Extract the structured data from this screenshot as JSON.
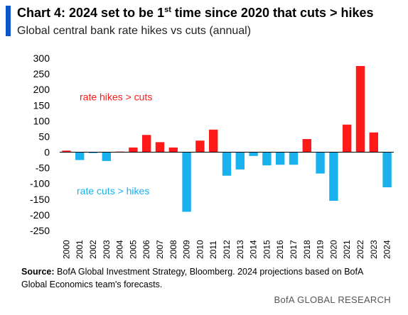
{
  "header": {
    "title_main": "Chart 4: 2024 set to be 1",
    "title_sup": "st",
    "title_rest": " time since 2020 that cuts > hikes",
    "subtitle": "Global central bank rate hikes vs cuts (annual)"
  },
  "footer": {
    "source_label": "Source:",
    "source_text": "BofA Global Investment Strategy, Bloomberg. 2024 projections based on BofA Global Economics team's forecasts.",
    "brand": "BofA GLOBAL RESEARCH"
  },
  "colors": {
    "positive": "#ff1a1a",
    "negative": "#19b2ee",
    "accent": "#0a56c9"
  },
  "chart_data": {
    "type": "bar",
    "categories": [
      "2000",
      "2001",
      "2002",
      "2003",
      "2004",
      "2005",
      "2006",
      "2007",
      "2008",
      "2009",
      "2010",
      "2011",
      "2012",
      "2013",
      "2014",
      "2015",
      "2016",
      "2017",
      "2018",
      "2019",
      "2020",
      "2021",
      "2022",
      "2023",
      "2024"
    ],
    "values": [
      5,
      -25,
      -3,
      -28,
      2,
      15,
      55,
      32,
      15,
      -190,
      37,
      72,
      -75,
      -55,
      -12,
      -42,
      -40,
      -40,
      42,
      -68,
      -155,
      88,
      275,
      63,
      -112
    ],
    "ylim": [
      -250,
      300
    ],
    "yticks": [
      -250,
      -200,
      -150,
      -100,
      -50,
      0,
      50,
      100,
      150,
      200,
      250,
      300
    ],
    "annotations": [
      {
        "text": "rate hikes > cuts",
        "color": "#ff1a1a"
      },
      {
        "text": "rate cuts > hikes",
        "color": "#19b2ee"
      }
    ]
  }
}
